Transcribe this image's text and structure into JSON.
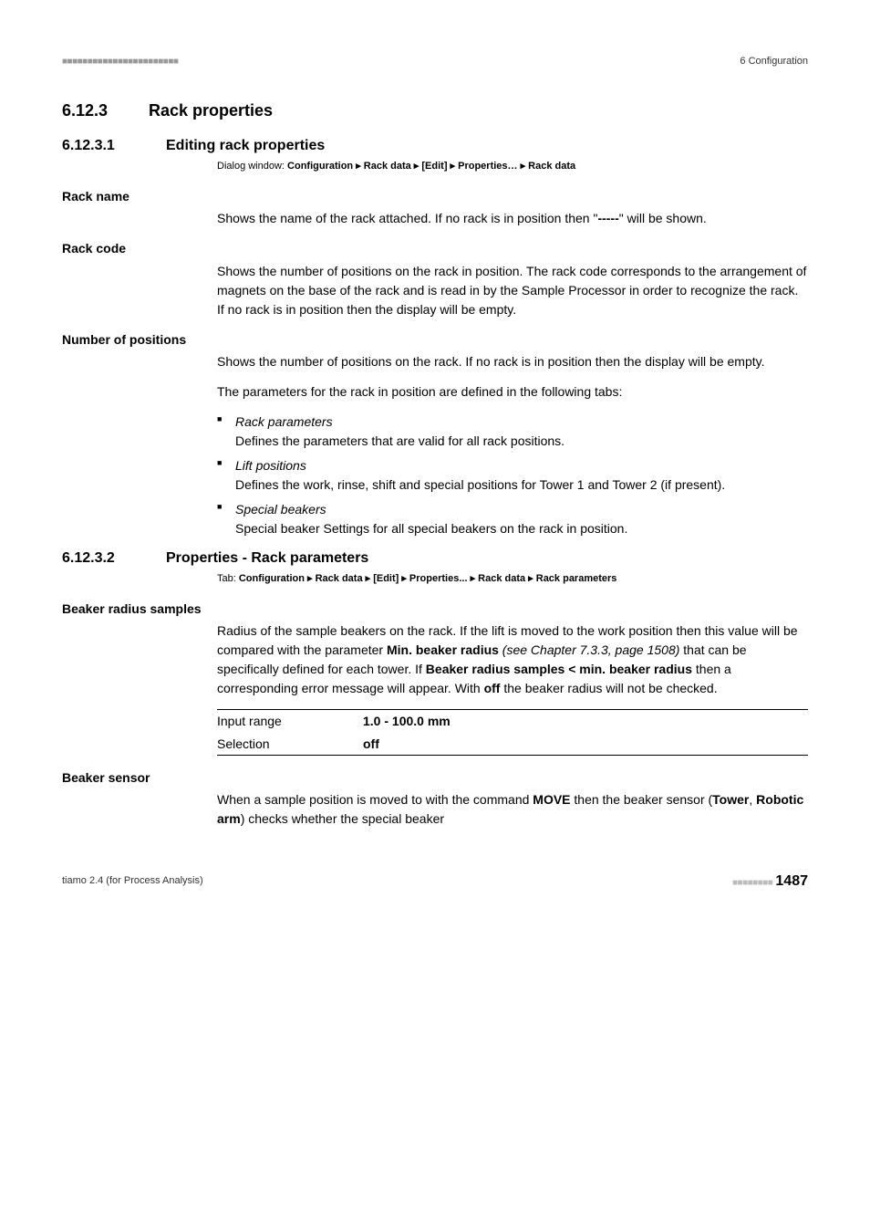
{
  "header": {
    "ticks": "■■■■■■■■■■■■■■■■■■■■■■■",
    "sectionLabel": "6 Configuration"
  },
  "section_6_12_3": {
    "num": "6.12.3",
    "title": "Rack properties"
  },
  "section_6_12_3_1": {
    "num": "6.12.3.1",
    "title": "Editing rack properties",
    "dialogPrefix": "Dialog window: ",
    "dialogPath": "Configuration ▸ Rack data ▸ [Edit] ▸ Properties… ▸ Rack data"
  },
  "rackName": {
    "label": "Rack name",
    "text1": "Shows the name of the rack attached. If no rack is in position then \"",
    "dashes": "-----",
    "text2": "\" will be shown."
  },
  "rackCode": {
    "label": "Rack code",
    "text": "Shows the number of positions on the rack in position. The rack code corresponds to the arrangement of magnets on the base of the rack and is read in by the Sample Processor in order to recognize the rack. If no rack is in position then the display will be empty."
  },
  "numPositions": {
    "label": "Number of positions",
    "text": "Shows the number of positions on the rack. If no rack is in position then the display will be empty.",
    "followTabs": "The parameters for the rack in position are defined in the following tabs:",
    "bullets": [
      {
        "title": "Rack parameters",
        "desc": "Defines the parameters that are valid for all rack positions."
      },
      {
        "title": "Lift positions",
        "desc": "Defines the work, rinse, shift and special positions for Tower 1 and Tower 2 (if present)."
      },
      {
        "title": "Special beakers",
        "desc": "Special beaker Settings for all special beakers on the rack in position."
      }
    ]
  },
  "section_6_12_3_2": {
    "num": "6.12.3.2",
    "title": "Properties - Rack parameters",
    "tabPrefix": "Tab: ",
    "tabPath": "Configuration ▸ Rack data ▸ [Edit] ▸ Properties... ▸ Rack data ▸ Rack parameters"
  },
  "beakerRadius": {
    "label": "Beaker radius samples",
    "p1a": "Radius of the sample beakers on the rack. If the lift is moved to the work position then this value will be compared with the parameter ",
    "p1b": "Min. beaker radius",
    "p1c": " (see Chapter 7.3.3, page 1508)",
    "p1d": " that can be specifically defined for each tower. If ",
    "p1e": "Beaker radius samples < min. beaker radius",
    "p1f": " then a corresponding error message will appear. With ",
    "p1g": "off",
    "p1h": " the beaker radius will not be checked.",
    "rows": [
      {
        "k": "Input range",
        "v": "1.0 - 100.0 mm"
      },
      {
        "k": "Selection",
        "v": "off"
      }
    ]
  },
  "beakerSensor": {
    "label": "Beaker sensor",
    "p1a": "When a sample position is moved to with the command ",
    "p1b": "MOVE",
    "p1c": " then the beaker sensor (",
    "p1d": "Tower",
    "p1e": ", ",
    "p1f": "Robotic arm",
    "p1g": ") checks whether the special beaker"
  },
  "footer": {
    "product": "tiamo 2.4 (for Process Analysis)",
    "ticks": "■■■■■■■■",
    "page": "1487"
  }
}
